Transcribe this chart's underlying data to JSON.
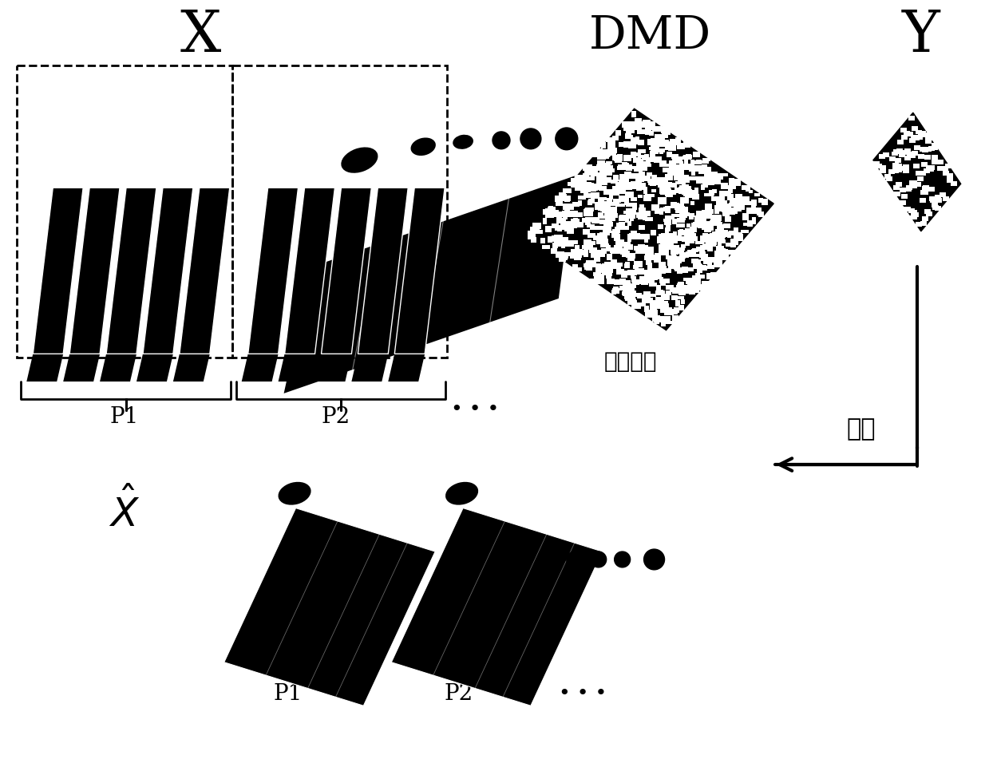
{
  "bg_color": "#ffffff",
  "label_X": "X",
  "label_DMD": "DMD",
  "label_Y": "Y",
  "label_modulate": "模板调制",
  "label_recover": "恢复",
  "label_P1_top": "P1",
  "label_P2_top": "P2",
  "label_P1_bot": "P1",
  "label_P2_bot": "P2",
  "label_Xhat": "$\\hat{X}$",
  "figsize": [
    12.39,
    9.56
  ],
  "dpi": 100
}
